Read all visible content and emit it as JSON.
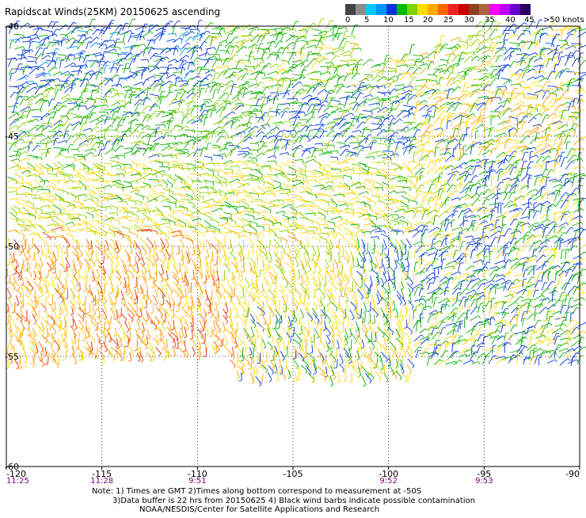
{
  "title": "Rapidscat Winds(25KM) 20150625 ascending",
  "legend": {
    "colors": [
      "#444444",
      "#8c8c8c",
      "#00c8ff",
      "#0096ff",
      "#0033dd",
      "#00bb00",
      "#7fd400",
      "#ffdd00",
      "#ffaa00",
      "#ff6600",
      "#ee2222",
      "#cc0000",
      "#8c4020",
      "#aa6644",
      "#ff00ff",
      "#bb00ff",
      "#6600cc",
      "#2a0060"
    ],
    "labels": [
      "0",
      "5",
      "10",
      "15",
      "20",
      "25",
      "30",
      "35",
      "40",
      "45",
      ">50 knots"
    ]
  },
  "map": {
    "x_ticks": [
      "-120",
      "-115",
      "-110",
      "-105",
      "-100",
      "-95",
      "-90"
    ],
    "y_ticks": [
      "-40",
      "-45",
      "-50",
      "-55",
      "-60"
    ],
    "times": [
      "11:25",
      "11:28",
      "9:51",
      "9:52",
      "9:53"
    ]
  },
  "notes": [
    "Note: 1) Times are GMT 2)Times along bottom correspond to measurement at -50S",
    "3)Data buffer is 22 hrs from 20150625 4) Black wind barbs indicate possible contamination",
    "NOAA/NESDIS/Center for Satellite Applications and Research"
  ]
}
